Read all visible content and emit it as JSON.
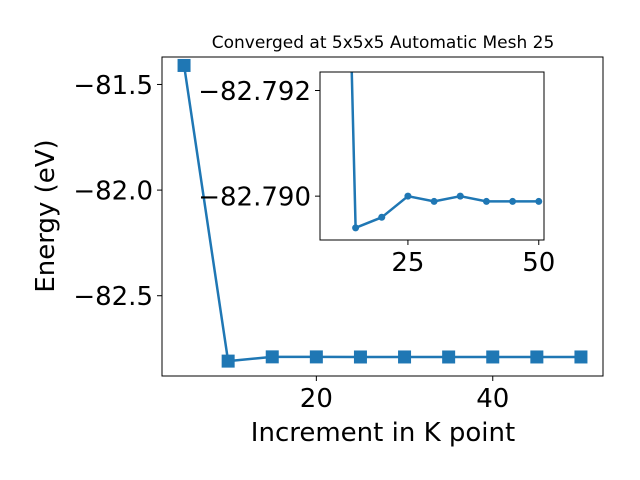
{
  "chart_data": {
    "main": {
      "type": "line",
      "title": "Converged at 5x5x5 Automatic Mesh 25",
      "xlabel": "Increment in K point",
      "ylabel": "Energy (eV)",
      "xlim": [
        2.5,
        52.5
      ],
      "ylim": [
        -82.88,
        -81.37
      ],
      "xticks": [
        20,
        40
      ],
      "yticks": [
        -81.5,
        -82.0,
        -82.5
      ],
      "ytick_labels": [
        "−81.5",
        "−82.0",
        "−82.5"
      ],
      "marker": "square",
      "color": "#1f77b4",
      "x": [
        5,
        10,
        15,
        20,
        25,
        30,
        35,
        40,
        45,
        50
      ],
      "y": [
        -81.41,
        -82.8095,
        -82.7894,
        -82.7896,
        -82.79,
        -82.7899,
        -82.79,
        -82.7899,
        -82.7899,
        -82.7899
      ]
    },
    "inset": {
      "type": "line",
      "xlim": [
        8.2,
        51.0
      ],
      "ylim": [
        -82.78917,
        -82.79235
      ],
      "xticks": [
        25,
        50
      ],
      "yticks": [
        -82.792,
        -82.79
      ],
      "ytick_labels": [
        "−82.792",
        "−82.790"
      ],
      "marker": "circle",
      "color": "#1f77b4",
      "x": [
        15,
        20,
        25,
        30,
        35,
        40,
        45,
        50
      ],
      "y": [
        -82.7894,
        -82.7896,
        -82.79,
        -82.7899,
        -82.79,
        -82.7899,
        -82.7899,
        -82.7899
      ]
    }
  }
}
